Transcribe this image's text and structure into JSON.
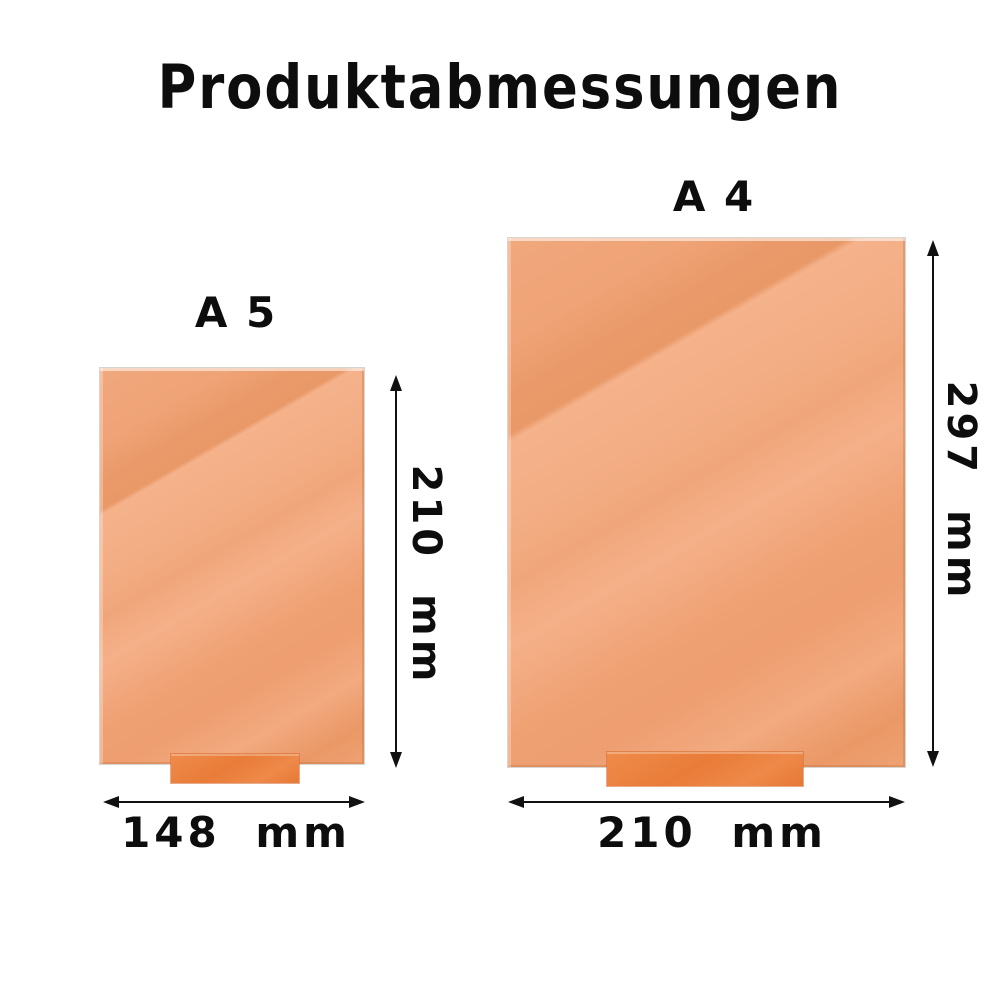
{
  "title": "Produktabmessungen",
  "colors": {
    "background": "#ffffff",
    "text": "#0d0d0d",
    "line": "#111111",
    "plate_base": "#efa377",
    "plate_highlight": "#f5b28b",
    "plate_shade": "#ea9a6a",
    "stand": "#e97c38"
  },
  "products": [
    {
      "name": "A5 acrylic plate with stand",
      "label": "A 5",
      "width_mm": 148,
      "height_mm": 210,
      "width_label": "148 mm",
      "height_label": "210 mm"
    },
    {
      "name": "A4 acrylic plate with stand",
      "label": "A 4",
      "width_mm": 210,
      "height_mm": 297,
      "width_label": "210 mm",
      "height_label": "297 mm"
    }
  ]
}
